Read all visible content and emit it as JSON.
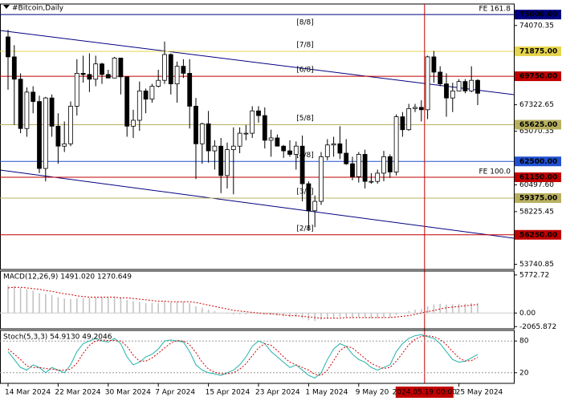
{
  "chart_data": [
    {
      "type": "candlestick",
      "title": "#Bitcoin,Daily",
      "categories": [
        "14 Mar 2024",
        null,
        null,
        null,
        null,
        null,
        null,
        null,
        "22 Mar 2024",
        null,
        null,
        null,
        null,
        null,
        null,
        null,
        "30 Mar 2024",
        null,
        null,
        null,
        null,
        null,
        null,
        null,
        "7 Apr 2024",
        null,
        null,
        null,
        null,
        null,
        null,
        null,
        "15 Apr 2024",
        null,
        null,
        null,
        null,
        null,
        null,
        null,
        "23 Apr 2024",
        null,
        null,
        null,
        null,
        null,
        null,
        null,
        "1 May 2024",
        null,
        null,
        null,
        null,
        null,
        null,
        null,
        "9 May 20",
        null,
        null,
        null,
        null,
        null,
        null,
        null,
        null,
        null,
        null,
        null,
        null,
        null,
        null,
        null,
        "25 May 2024",
        null,
        null,
        null
      ],
      "cursor_label": "2024.05.19 00:00",
      "open": [
        73100,
        71400,
        69500,
        65300,
        68400,
        67600,
        61900,
        67900,
        65500,
        63800,
        64000,
        67200,
        70000,
        69900,
        69500,
        70800,
        69900,
        69600,
        71300,
        69700,
        65500,
        66000,
        68500,
        67800,
        68900,
        69400,
        71600,
        69100,
        70600,
        70000,
        67200,
        64000,
        65700,
        63400,
        63800,
        61300,
        63500,
        63800,
        64900,
        64900,
        66800,
        66400,
        64300,
        64500,
        63800,
        63400,
        63100,
        63800,
        60600,
        58300,
        59100,
        62900,
        63900,
        64000,
        63200,
        62300,
        61200,
        63100,
        60800,
        60800,
        61500,
        62900,
        61600,
        66300,
        65200,
        67000,
        67100,
        66900,
        71400,
        70100,
        69100,
        67900,
        68500,
        69300,
        68500,
        69400
      ],
      "high": [
        73700,
        72400,
        70000,
        68800,
        68900,
        68100,
        68000,
        68200,
        66600,
        65900,
        67600,
        71200,
        71500,
        71700,
        71500,
        70900,
        70300,
        71400,
        71300,
        69700,
        66900,
        69300,
        68700,
        69100,
        70300,
        72700,
        71700,
        71000,
        71200,
        71200,
        67900,
        65800,
        66800,
        64300,
        64500,
        64100,
        65400,
        65400,
        65600,
        67200,
        67200,
        67100,
        65200,
        64800,
        63900,
        64300,
        64200,
        64700,
        60800,
        59600,
        63300,
        64400,
        64600,
        65500,
        64400,
        62900,
        63300,
        63500,
        61500,
        61800,
        63400,
        63100,
        66500,
        66700,
        67400,
        67400,
        67700,
        71500,
        71900,
        70600,
        70000,
        69200,
        69500,
        69500,
        70600,
        69500
      ],
      "low": [
        68600,
        65600,
        64900,
        64600,
        66600,
        61500,
        60800,
        64600,
        62300,
        63300,
        63800,
        66400,
        69200,
        68400,
        68900,
        69100,
        69600,
        69600,
        68200,
        64600,
        64500,
        65100,
        66600,
        67500,
        68800,
        69100,
        68200,
        67500,
        69600,
        65300,
        61000,
        62300,
        62400,
        61800,
        59800,
        60200,
        59700,
        63200,
        64300,
        64500,
        65800,
        63600,
        62900,
        63800,
        62800,
        62900,
        61800,
        59100,
        56600,
        56900,
        58800,
        62600,
        62900,
        62700,
        62200,
        60900,
        60700,
        60200,
        60600,
        60600,
        60800,
        61100,
        61300,
        64600,
        65100,
        66700,
        65900,
        66100,
        69200,
        68900,
        66300,
        66700,
        68500,
        68300,
        68400,
        67300
      ],
      "close": [
        71400,
        69500,
        65300,
        68400,
        67600,
        61900,
        67900,
        65500,
        63800,
        64000,
        67200,
        70000,
        69900,
        69500,
        70800,
        69900,
        69600,
        71300,
        69700,
        65500,
        66000,
        68500,
        67800,
        68900,
        69400,
        71600,
        69100,
        70600,
        70000,
        67200,
        64000,
        65700,
        63400,
        63800,
        61300,
        63500,
        63800,
        64900,
        64900,
        66800,
        66400,
        64300,
        64500,
        63800,
        63400,
        63100,
        63800,
        60600,
        58300,
        59100,
        62900,
        63900,
        64000,
        63200,
        62300,
        61200,
        63100,
        60800,
        60800,
        61500,
        62900,
        61600,
        66300,
        65200,
        67000,
        67100,
        66900,
        71400,
        70100,
        69100,
        67900,
        68500,
        69300,
        68500,
        69400,
        68300
      ],
      "ylim": [
        53300,
        75900
      ],
      "yticks": [
        74070.35,
        67322.65,
        65070.35,
        {
          "value": 60497.6,
          "label": "60497.60"
        },
        58225.45,
        53740.85
      ],
      "levels": [
        {
          "value": 75000,
          "label": "75000.00",
          "color": "#000080"
        },
        {
          "value": 71875,
          "label": "71875.00",
          "color": "#e6d44c"
        },
        {
          "value": 69750,
          "label": "69750.00",
          "color": "#c00000"
        },
        {
          "value": 65625,
          "label": "65625.00",
          "color": "#b8b060"
        },
        {
          "value": 62500,
          "label": "62500.00",
          "color": "#2050d0"
        },
        {
          "value": 61150,
          "label": "61150.00",
          "color": "#c00000"
        },
        {
          "value": 59375,
          "label": "59375.00",
          "color": "#b8b060"
        },
        {
          "value": 56250,
          "label": "56250.00",
          "color": "#c00000"
        }
      ],
      "murrey_labels": [
        {
          "text": "[8/8]",
          "value": 75000,
          "color": "#000080"
        },
        {
          "text": "[7/8]",
          "value": 71875,
          "color": "#c0a020"
        },
        {
          "text": "[6/8]",
          "value": 69750,
          "color": "#c00000"
        },
        {
          "text": "[5/8]",
          "value": 65625,
          "color": "#a0a060"
        },
        {
          "text": "[4/8]",
          "value": 62500,
          "color": "#2050d0"
        },
        {
          "text": "[3/8]",
          "value": 59375,
          "color": "#a0a060"
        },
        {
          "text": "[2/8]",
          "value": 56250,
          "color": "#c00000"
        }
      ],
      "fe_labels": [
        {
          "text": "FE 161.8",
          "value": 75000
        },
        {
          "text": "FE 100.0",
          "value": 61150
        }
      ]
    },
    {
      "type": "macd",
      "title": "MACD(12,26,9) 1491.020 1270.649",
      "values": [
        4200,
        4100,
        3800,
        3600,
        3400,
        3000,
        2900,
        2700,
        2400,
        2200,
        2100,
        2200,
        2300,
        2300,
        2400,
        2400,
        2300,
        2400,
        2300,
        2000,
        1800,
        1700,
        1500,
        1500,
        1500,
        1700,
        1600,
        1700,
        1700,
        1500,
        1000,
        800,
        500,
        300,
        0,
        -100,
        -200,
        -200,
        -200,
        -100,
        -100,
        -200,
        -300,
        -400,
        -500,
        -600,
        -600,
        -800,
        -1100,
        -1200,
        -1000,
        -800,
        -700,
        -600,
        -600,
        -700,
        -600,
        -700,
        -800,
        -800,
        -700,
        -700,
        -300,
        0,
        300,
        500,
        600,
        1000,
        1300,
        1400,
        1300,
        1300,
        1400,
        1400,
        1500,
        1491.02
      ],
      "signal": [
        3800,
        3900,
        3900,
        3800,
        3700,
        3600,
        3400,
        3300,
        3100,
        2900,
        2800,
        2600,
        2500,
        2400,
        2400,
        2400,
        2400,
        2400,
        2300,
        2300,
        2200,
        2100,
        2000,
        1900,
        1800,
        1800,
        1700,
        1700,
        1700,
        1700,
        1600,
        1400,
        1200,
        1000,
        800,
        600,
        400,
        300,
        200,
        100,
        0,
        -100,
        -100,
        -200,
        -300,
        -400,
        -400,
        -500,
        -600,
        -700,
        -800,
        -800,
        -800,
        -800,
        -700,
        -700,
        -700,
        -700,
        -700,
        -700,
        -700,
        -700,
        -600,
        -500,
        -400,
        -200,
        0,
        200,
        400,
        600,
        800,
        900,
        1000,
        1100,
        1200,
        1270.649
      ],
      "color": "#c0c0c0",
      "signal_color": "#d00000",
      "ylim": [
        -2400,
        6360
      ],
      "yticks": [
        5772.72,
        {
          "value": 0,
          "label": "0.00"
        },
        -2065.872
      ]
    },
    {
      "type": "stochastic",
      "title": "Stoch(5,3,3) 54.9130 49.2046",
      "main": [
        60,
        45,
        30,
        25,
        35,
        30,
        20,
        30,
        25,
        20,
        35,
        60,
        75,
        80,
        85,
        80,
        78,
        85,
        75,
        50,
        35,
        40,
        50,
        55,
        65,
        80,
        82,
        80,
        78,
        60,
        35,
        25,
        20,
        18,
        15,
        20,
        25,
        35,
        50,
        70,
        80,
        75,
        60,
        50,
        40,
        30,
        35,
        25,
        15,
        10,
        20,
        45,
        65,
        75,
        70,
        55,
        45,
        40,
        30,
        25,
        30,
        35,
        60,
        75,
        85,
        90,
        92,
        88,
        85,
        75,
        60,
        45,
        40,
        42,
        48,
        54.913
      ],
      "signal": [
        65,
        55,
        45,
        33,
        30,
        30,
        28,
        27,
        25,
        25,
        27,
        38,
        57,
        72,
        80,
        82,
        81,
        81,
        80,
        70,
        53,
        42,
        42,
        48,
        57,
        67,
        76,
        81,
        80,
        73,
        58,
        40,
        27,
        21,
        18,
        18,
        20,
        27,
        37,
        52,
        67,
        75,
        72,
        62,
        50,
        40,
        35,
        30,
        25,
        17,
        15,
        25,
        43,
        62,
        70,
        67,
        57,
        47,
        38,
        32,
        28,
        30,
        42,
        57,
        73,
        83,
        89,
        90,
        88,
        83,
        73,
        60,
        48,
        42,
        43,
        49.2046
      ],
      "color": "#20b2aa",
      "signal_color": "#d00000",
      "ylim": [
        0,
        100
      ],
      "yticks": [
        80,
        20
      ]
    }
  ]
}
